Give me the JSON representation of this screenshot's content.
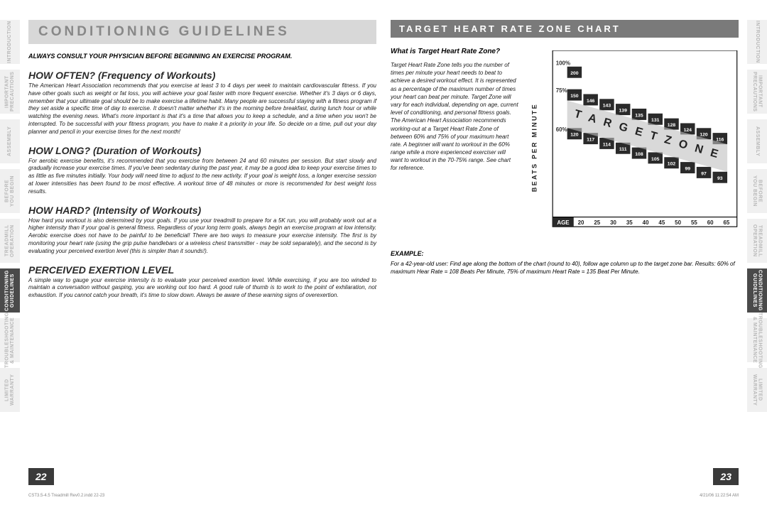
{
  "tabs": {
    "left": [
      "INTRODUCTION",
      "IMPORTANT\nPRECAUTIONS",
      "ASSEMBLY",
      "BEFORE\nYOU BEGIN",
      "TREADMILL\nOPERATION",
      "CONDITIONING\nGUIDELINES",
      "TROUBLESHOOTING\n& MAINTENANCE",
      "LIMITED\nWARRANTY"
    ],
    "right": [
      "INTRODUCTION",
      "IMPORTANT\nPRECAUTIONS",
      "ASSEMBLY",
      "BEFORE\nYOU BEGIN",
      "TREADMILL\nOPERATION",
      "CONDITIONING\nGUIDELINES",
      "TROUBLESHOOTING\n& MAINTENANCE",
      "LIMITED\nWARRANTY"
    ],
    "active_index": 5
  },
  "left_page": {
    "title": "CONDITIONING GUIDELINES",
    "disclaimer": "ALWAYS CONSULT YOUR PHYSICIAN BEFORE BEGINNING AN EXERCISE PROGRAM.",
    "sections": [
      {
        "head": "HOW OFTEN? (Frequency of Workouts)",
        "body": "The American Heart Association recommends that you exercise at least 3 to 4 days per week to maintain cardiovascular fitness. If you have other goals such as weight or fat loss, you will achieve your goal faster with more frequent exercise. Whether it's 3 days or 6 days, remember that your ultimate goal should be to make exercise a lifetime habit. Many people are successful staying with a fitness program if they set aside a specific time of day to exercise. It doesn't matter whether it's in the morning before breakfast, during lunch hour or while watching the evening news. What's more important is that it's a time that allows you to keep a schedule, and a time when you won't be interrupted. To be successful with your fitness program, you have to make it a priority in your life. So decide on a time, pull out your day planner and pencil in your exercise times for the next month!"
      },
      {
        "head": "HOW LONG? (Duration of Workouts)",
        "body": "For aerobic exercise benefits, it's recommended that you exercise from between 24 and 60 minutes per session. But start slowly and gradually increase your exercise times. If you've been sedentary during the past year, it may be a good idea to keep your exercise times to as little as five minutes initially. Your body will need time to adjust to the new activity. If your goal is weight loss, a longer exercise session at lower intensities has been found to be most effective. A workout time of 48 minutes or more is recommended for best weight loss results."
      },
      {
        "head": "HOW HARD? (Intensity of Workouts)",
        "body": "How hard you workout is also determined by your goals. If you use your treadmill to prepare for a 5K run, you will probably work out at a higher intensity than if your goal is general fitness. Regardless of your long term goals, always begin an exercise program at low intensity. Aerobic exercise does not have to be painful to be beneficial! There are two ways to measure your exercise intensity. The first is by monitoring your heart rate (using the grip pulse handlebars or a wireless chest transmitter - may be sold separately), and the second is by evaluating your perceived exertion level (this is simpler than it sounds!)."
      },
      {
        "head": "PERCEIVED EXERTION LEVEL",
        "body": "A simple way to gauge your exercise intensity is to evaluate your perceived exertion level. While exercising, if you are too winded to maintain a conversation without gasping, you are working out too hard. A good rule of thumb is to work to the point of exhilaration, not exhaustion. If you cannot catch your breath, it's time to slow down. Always be aware of these warning signs of overexertion."
      }
    ],
    "page_num": "22"
  },
  "right_page": {
    "subtitle": "TARGET HEART RATE ZONE CHART",
    "q_head": "What is Target Heart Rate Zone?",
    "q_body": "Target Heart Rate Zone tells you the number of times per minute your heart needs to beat to achieve a desired workout effect. It is represented as a percentage of the maximum number of times your heart can beat per minute. Target Zone will vary for each individual, depending on age, current level of conditioning, and personal fitness goals. The American Heart Association recommends working-out at a Target Heart Rate Zone of between 60% and 75% of your maximum heart rate. A beginner will want to workout in the 60% range while a more experienced exerciser will want to workout in the 70-75% range. See chart for reference.",
    "example_head": "EXAMPLE:",
    "example_body": "For a 42-year-old user: Find age along the bottom of the chart (round to 40), follow age column up to the target zone bar. Results: 60% of maximum Hear Rate = 108 Beats Per Minute, 75% of maximum Heart Rate = 135 Beat Per Minute.",
    "page_num": "23"
  },
  "chart": {
    "y_label": "BEATS PER MINUTE",
    "x_label": "AGE",
    "pct_labels": [
      "100%",
      "75%",
      "60%"
    ],
    "ages": [
      "20",
      "25",
      "30",
      "35",
      "40",
      "45",
      "50",
      "55",
      "60",
      "65"
    ],
    "row_100": [
      "200"
    ],
    "row_75": [
      "150",
      "146",
      "143",
      "139",
      "135",
      "131",
      "128",
      "124",
      "120",
      "116"
    ],
    "row_60": [
      "120",
      "117",
      "114",
      "111",
      "108",
      "105",
      "102",
      "99",
      "97",
      "93"
    ],
    "zone_text": "T A R G E T   Z O N E",
    "colors": {
      "bg": "#ffffff",
      "bar_dark": "#2a2a2a",
      "bar_mid": "#555555",
      "text": "#ffffff",
      "pct": "#333333",
      "border": "#000000"
    }
  },
  "footer": {
    "left": "CST3.5-4.5 Treadmill Rev0.2.indd   22-23",
    "right": "4/21/06   11:22:54 AM"
  }
}
